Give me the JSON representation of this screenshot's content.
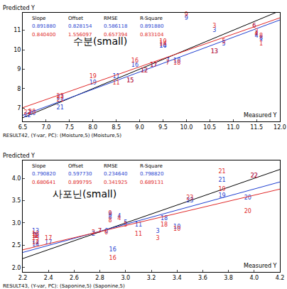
{
  "chart_data": [
    {
      "type": "scatter",
      "title": "수분(small)",
      "x_label": "Measured Y",
      "y_label": "Predicted Y",
      "annotations": [
        "RESULT42, (Y-var, PC): (Moisture,5) (Moisture,5)"
      ],
      "stats_headers": [
        "Slope",
        "Offset",
        "RMSE",
        "R-Square"
      ],
      "labels": [
        "1",
        "2",
        "3",
        "4",
        "5",
        "6",
        "7",
        "8",
        "9",
        "10",
        "11",
        "12",
        "13",
        "14",
        "15",
        "16",
        "17",
        "18",
        "19",
        "20",
        "21",
        "22",
        "23"
      ],
      "x": [
        11.6,
        11.5,
        10.6,
        11.5,
        10.8,
        11.45,
        9.6,
        11.6,
        10.0,
        9.5,
        8.5,
        9.1,
        10.6,
        9.5,
        8.8,
        8.9,
        9.3,
        9.8,
        8.0,
        6.7,
        7.3,
        6.6,
        7.3
      ],
      "series": [
        {
          "color": "#1f3fd0",
          "values": [
            10.5,
            10.8,
            11.0,
            10.7,
            10.3,
            11.2,
            9.4,
            10.6,
            11.6,
            10.2,
            8.6,
            8.9,
            9.9,
            10.2,
            8.4,
            9.2,
            9.2,
            9.4,
            8.3,
            6.7,
            7.0,
            6.6,
            7.5
          ],
          "stats": [
            {
              "value": 0.89188,
              "label": "0.891880"
            },
            {
              "value": 0.828154,
              "label": "0.828154"
            },
            {
              "value": 0.586118,
              "label": "0.586118"
            },
            {
              "value": 0.89188,
              "label": "0.891880"
            }
          ]
        },
        {
          "color": "#e02828",
          "values": [
            10.3,
            10.9,
            11.2,
            10.8,
            10.4,
            11.2,
            9.3,
            10.7,
            11.8,
            10.4,
            8.3,
            8.9,
            9.9,
            10.3,
            8.4,
            9.4,
            9.2,
            9.3,
            8.6,
            6.8,
            7.4,
            6.75,
            7.6
          ],
          "stats": [
            {
              "value": 0.8404,
              "label": "0.840400"
            },
            {
              "value": 1.556097,
              "label": "1.556097"
            },
            {
              "value": 0.657394,
              "label": "0.657394"
            },
            {
              "value": 0.833104,
              "label": "0.833104"
            }
          ]
        }
      ],
      "xlim": [
        6.5,
        12.0
      ],
      "ylim": [
        6.3,
        11.9
      ],
      "xticks": [
        6.5,
        {
          "value": 7,
          "label": "7.0"
        },
        7.5,
        {
          "value": 8,
          "label": "8.0"
        },
        8.5,
        {
          "value": 9,
          "label": "9.0"
        },
        9.5,
        {
          "value": 10,
          "label": "10.0"
        },
        10.5,
        {
          "value": 11,
          "label": "11.0"
        },
        11.5,
        {
          "value": 12,
          "label": "12.0"
        }
      ],
      "yticks": [
        7,
        8,
        9,
        10,
        11
      ],
      "grid": false
    },
    {
      "type": "scatter",
      "title": "사포닌(small)",
      "x_label": "Measured Y",
      "y_label": "Predicted Y",
      "annotations": [
        "RESULT43, (Y-var, PC): (Saponine,5) (Saponine,5)"
      ],
      "stats_headers": [
        "Slope",
        "Offset",
        "RMSE",
        "R-Square"
      ],
      "labels": [
        "1",
        "2",
        "3",
        "4",
        "5",
        "6",
        "7",
        "8",
        "9",
        "10",
        "11",
        "12",
        "13",
        "14",
        "15",
        "16",
        "17",
        "18",
        "19",
        "20",
        "21",
        "22",
        "23"
      ],
      "x": [
        2.3,
        2.75,
        3.25,
        2.95,
        3.0,
        2.85,
        2.8,
        2.88,
        2.88,
        3.4,
        3.1,
        2.3,
        2.3,
        2.3,
        2.3,
        2.9,
        2.4,
        3.3,
        3.75,
        3.95,
        3.75,
        4.0,
        3.5
      ],
      "series": [
        {
          "color": "#1f3fd0",
          "values": [
            2.7,
            2.75,
            2.8,
            3.15,
            3.0,
            2.8,
            2.8,
            3.12,
            3.18,
            2.9,
            2.95,
            2.55,
            2.8,
            2.5,
            2.7,
            2.4,
            2.55,
            3.1,
            3.6,
            3.55,
            3.95,
            4.05,
            3.5
          ],
          "stats": [
            {
              "value": 0.79082,
              "label": "0.790820"
            },
            {
              "value": 0.59773,
              "label": "0.597730"
            },
            {
              "value": 0.23464,
              "label": "0.234640"
            },
            {
              "value": 0.79882,
              "label": "0.798820"
            }
          ]
        },
        {
          "color": "#e02828",
          "values": [
            2.72,
            2.78,
            2.65,
            3.1,
            2.95,
            2.78,
            2.8,
            3.05,
            3.2,
            2.85,
            2.75,
            2.7,
            2.75,
            2.55,
            2.65,
            2.2,
            2.65,
            2.95,
            3.75,
            3.25,
            4.15,
            4.05,
            3.55
          ],
          "stats": [
            {
              "value": 0.680641,
              "label": "0.680641"
            },
            {
              "value": 0.899795,
              "label": "0.899795"
            },
            {
              "value": 0.341925,
              "label": "0.341925"
            },
            {
              "value": 0.689131,
              "label": "0.689131"
            }
          ]
        }
      ],
      "xlim": [
        2.2,
        4.2
      ],
      "ylim": [
        1.9,
        4.4
      ],
      "xticks": [
        2.2,
        2.4,
        2.6,
        2.8,
        {
          "value": 3,
          "label": "3.0"
        },
        3.2,
        3.4,
        3.6,
        3.8,
        {
          "value": 4,
          "label": "4.0"
        },
        4.2
      ],
      "yticks": [
        {
          "value": 2,
          "label": "2.0"
        },
        2.5,
        {
          "value": 3,
          "label": "3.0"
        },
        3.5,
        {
          "value": 4,
          "label": "4.0"
        }
      ],
      "grid": false
    }
  ]
}
